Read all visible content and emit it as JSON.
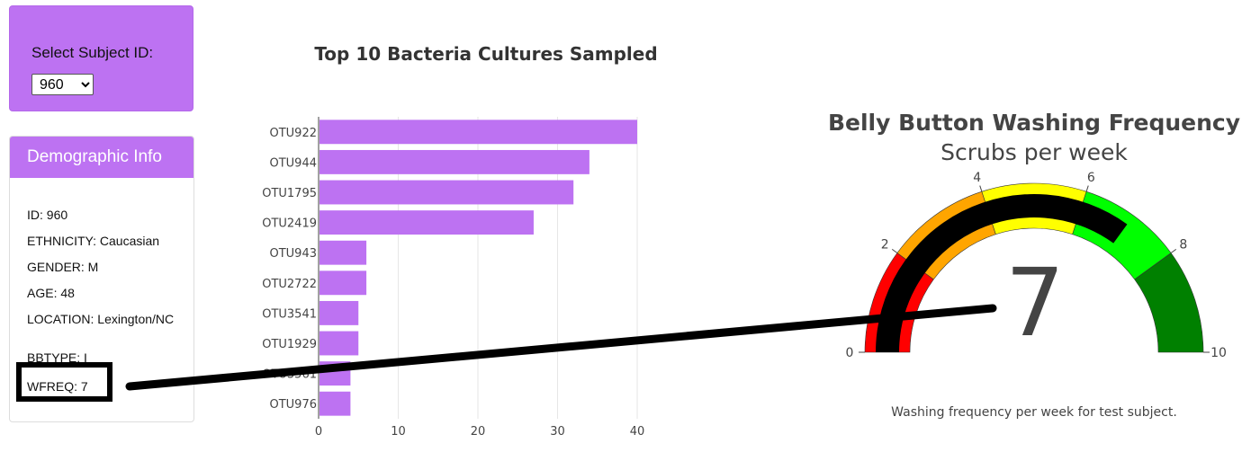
{
  "selector": {
    "label": "Select Subject ID:",
    "selected": "960"
  },
  "demographics": {
    "title": "Demographic Info",
    "lines": [
      "ID: 960",
      "ETHNICITY: Caucasian",
      "GENDER: M",
      "AGE: 48",
      "LOCATION: Lexington/NC",
      "BBTYPE: I",
      "WFREQ: 7"
    ]
  },
  "colors": {
    "accent": "#bd72f2",
    "bar": "#bd72f2"
  },
  "chart_data": [
    {
      "type": "bar",
      "orientation": "horizontal",
      "title": "Top 10 Bacteria Cultures Sampled",
      "categories": [
        "OTU922",
        "OTU944",
        "OTU1795",
        "OTU2419",
        "OTU943",
        "OTU2722",
        "OTU3541",
        "OTU1929",
        "OTU3561",
        "OTU976"
      ],
      "values": [
        40,
        34,
        32,
        27,
        6,
        6,
        5,
        5,
        4,
        4
      ],
      "xticks": [
        0,
        10,
        20,
        30,
        40
      ],
      "xlim": [
        0,
        40.2
      ],
      "grid": true
    },
    {
      "type": "gauge",
      "title": "Belly Button Washing Frequency",
      "subtitle": "Scrubs per week",
      "value": 7,
      "range": [
        0,
        10
      ],
      "ticks": [
        0,
        2,
        4,
        6,
        8,
        10
      ],
      "bands": [
        {
          "from": 0,
          "to": 2,
          "color": "#ff0000"
        },
        {
          "from": 2,
          "to": 4,
          "color": "#ffa500"
        },
        {
          "from": 4,
          "to": 6,
          "color": "#ffff00"
        },
        {
          "from": 6,
          "to": 8,
          "color": "#00ff00"
        },
        {
          "from": 8,
          "to": 10,
          "color": "#008000"
        }
      ],
      "bar_color": "#000000",
      "caption": "Washing frequency per week for test subject."
    }
  ]
}
